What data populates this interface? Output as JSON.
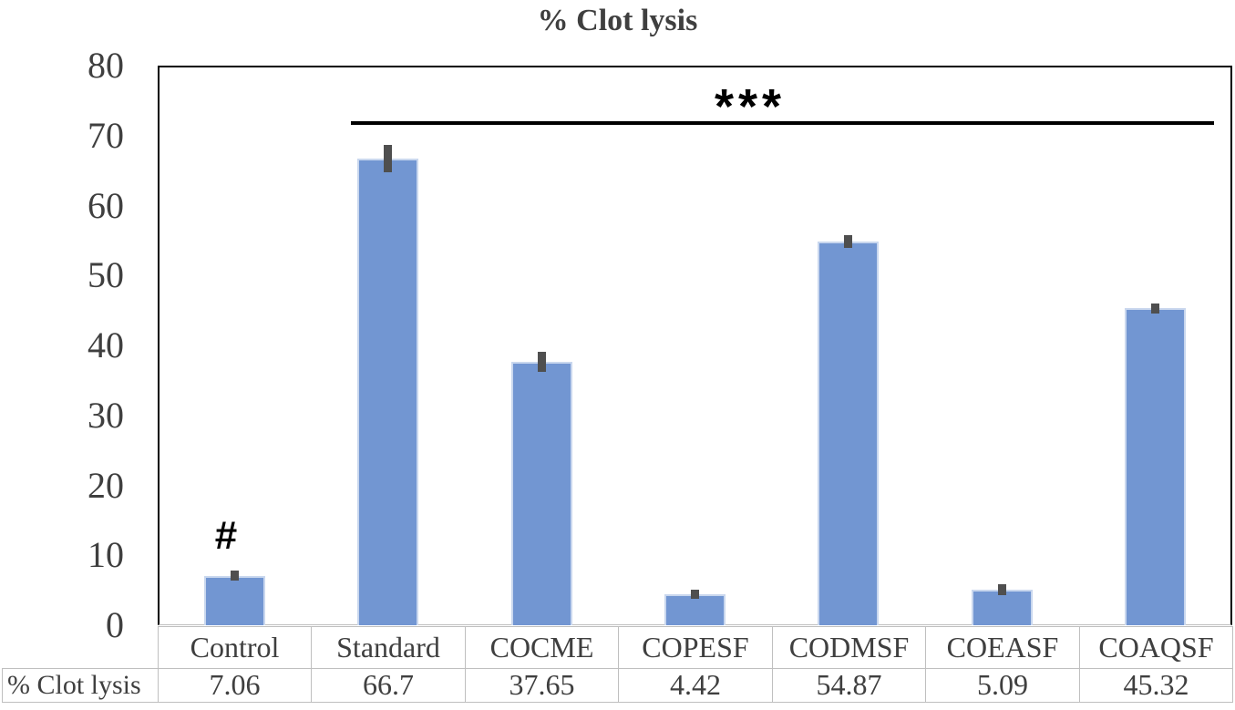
{
  "annotations": {
    "hash": "#",
    "stars": "***"
  },
  "table": {
    "row_header": "% Clot lysis"
  },
  "chart_data": {
    "type": "bar",
    "title": "% Clot lysis",
    "categories": [
      "Control",
      "Standard",
      "COCME",
      "COPESF",
      "CODMSF",
      "COEASF",
      "COAQSF"
    ],
    "values": [
      7.06,
      66.7,
      37.65,
      4.42,
      54.87,
      5.09,
      45.32
    ],
    "errors": [
      0.7,
      2.0,
      1.4,
      0.7,
      0.9,
      0.8,
      0.7
    ],
    "yticks": [
      0,
      10,
      20,
      30,
      40,
      50,
      60,
      70,
      80
    ],
    "ylim": [
      0,
      80
    ],
    "grid": false,
    "legend": "none",
    "data_table_shown": true,
    "significance": {
      "hash_over_category": "Control",
      "stars_span_categories": [
        "Standard",
        "COAQSF"
      ],
      "stars_label": "***"
    },
    "colors": {
      "bar_fill": "#7296D2",
      "bar_edge": "#C9D7EE",
      "error_bar": "#4F4F4F",
      "axis_text": "#3F3F3F",
      "plot_border": "#000000",
      "table_border": "#BFBFBF",
      "annotation": "#000000"
    }
  }
}
